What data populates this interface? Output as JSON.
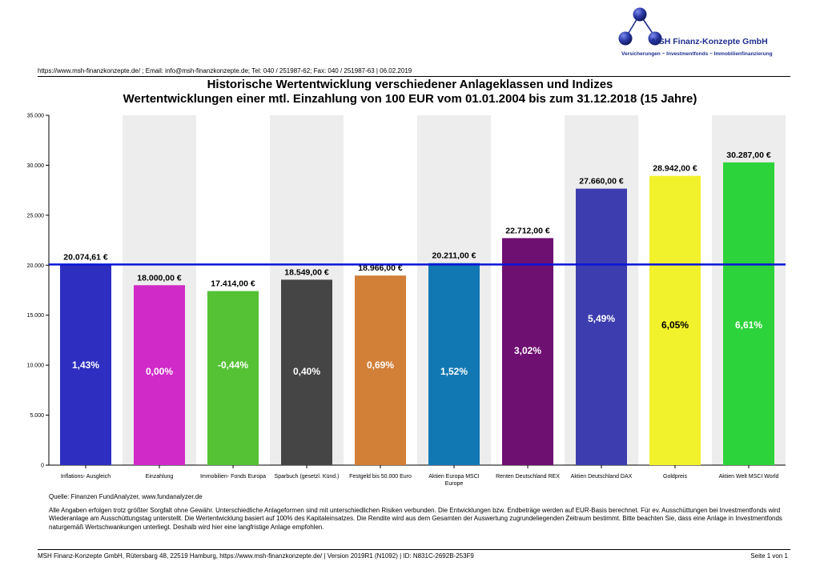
{
  "header": {
    "company_name": "MSH Finanz-Konzepte GmbH",
    "company_tagline": "Versicherungen ~ Investmentfonds ~ Immobilienfinanzierung",
    "contact_line": "https://www.msh-finanzkonzepte.de/ ; Email: info@msh-finanzkonzepte.de; Tel: 040 / 251987-62; Fax: 040 / 251987-63 | 06.02.2019",
    "colors": {
      "logo": "#1f2f8f"
    }
  },
  "chart_data": {
    "type": "bar",
    "title": "Historische Wertentwicklung verschiedener Anlageklassen und Indizes",
    "subtitle": "Wertentwicklungen einer mtl. Einzahlung von 100 EUR vom 01.01.2004 bis zum 31.12.2018 (15 Jahre)",
    "xlabel": "",
    "ylabel": "",
    "ylim": [
      0,
      35000
    ],
    "yticks": [
      0,
      5000,
      10000,
      15000,
      20000,
      25000,
      30000,
      35000
    ],
    "ytick_labels": [
      "0",
      "5.000",
      "10.000",
      "15.000",
      "20.000",
      "25.000",
      "30.000",
      "35.000"
    ],
    "reference_line": {
      "value": 20074.61,
      "color": "#0a14d8"
    },
    "grid": false,
    "categories": [
      [
        "Inflations- Ausgleich"
      ],
      [
        "Einzahlung"
      ],
      [
        "Immobilien- Fonds Europa"
      ],
      [
        "Sparbuch (gesetzl. Künd.)"
      ],
      [
        "Festgeld bis 50.000 Euro"
      ],
      [
        "Aktien Europa MSCI",
        "Europe"
      ],
      [
        "Renten Deutschland REX"
      ],
      [
        "Aktien Deutschland DAX"
      ],
      [
        "Goldpreis"
      ],
      [
        "Aktien Welt MSCI World"
      ]
    ],
    "values": [
      20074.61,
      18000.0,
      17414.0,
      18549.0,
      18966.0,
      20211.0,
      22712.0,
      27660.0,
      28942.0,
      30287.0
    ],
    "value_labels": [
      "20.074,61 €",
      "18.000,00 €",
      "17.414,00 €",
      "18.549,00 €",
      "18.966,00 €",
      "20.211,00 €",
      "22.712,00 €",
      "27.660,00 €",
      "28.942,00 €",
      "30.287,00 €"
    ],
    "rates": [
      "1,43%",
      "0,00%",
      "-0,44%",
      "0,40%",
      "0,69%",
      "1,52%",
      "3,02%",
      "5,49%",
      "6,05%",
      "6,61%"
    ],
    "colors": [
      "#2e2ec0",
      "#d02ac8",
      "#55c235",
      "#454545",
      "#d27f38",
      "#1278b3",
      "#6e0f72",
      "#3d3daf",
      "#f2f22c",
      "#2dd33a"
    ],
    "rate_label_colors": [
      "#ffffff",
      "#ffffff",
      "#ffffff",
      "#ffffff",
      "#ffffff",
      "#ffffff",
      "#ffffff",
      "#ffffff",
      "#000000",
      "#ffffff"
    ]
  },
  "source": "Quelle: Finanzen FundAnalyzer, www.fundanalyzer.de",
  "disclaimer": "Alle Angaben erfolgen trotz größter Sorgfalt ohne Gewähr. Unterschiedliche Anlageformen sind mit unterschiedlichen Risiken verbunden. Die Entwicklungen bzw. Endbeträge werden auf EUR-Basis berechnet. Für ev. Ausschüttungen bei Investmentfonds wird Wiederanlage am Ausschüttungstag unterstellt. Die Wertentwicklung basiert auf 100% des Kapitaleinsatzes. Die Rendite wird aus dem Gesamten der Auswertung zugrundeliegenden Zeitraum bestimmt. Bitte beachten Sie, dass eine Anlage in Investmentfonds naturgemäß Wertschwankungen unterliegt. Deshalb wird hier eine langfristige Anlage empfohlen.",
  "footer": {
    "left": "MSH Finanz-Konzepte GmbH, Rütersbarg 48, 22519 Hamburg, https://www.msh-finanzkonzepte.de/  | Version 2019R1 (N1092) | ID: N831C-2692B-253F9",
    "right": "Seite 1 von 1"
  }
}
